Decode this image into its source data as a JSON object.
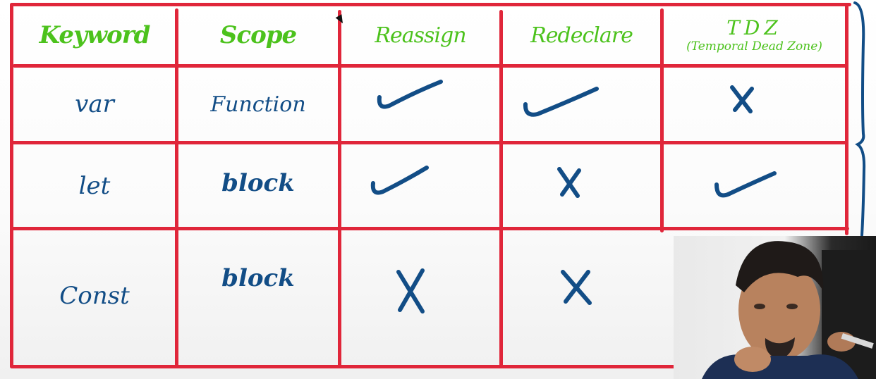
{
  "table": {
    "headers": {
      "keyword": "Keyword",
      "scope": "Scope",
      "reassign": "Reassign",
      "redeclare": "Redeclare",
      "tdz": "TDZ",
      "tdz_sub": "(Temporal Dead Zone)"
    },
    "rows": [
      {
        "keyword": "var",
        "scope": "Function",
        "reassign": "check",
        "redeclare": "check",
        "tdz": "cross"
      },
      {
        "keyword": "let",
        "scope": "block",
        "reassign": "check",
        "redeclare": "cross",
        "tdz": "check"
      },
      {
        "keyword": "Const",
        "scope": "block",
        "reassign": "cross",
        "redeclare": "cross",
        "tdz": ""
      }
    ]
  },
  "colors": {
    "grid": "#e0263a",
    "header_ink": "#4cc21c",
    "body_ink": "#124d86"
  },
  "icons": {
    "check": "check-mark-icon",
    "cross": "cross-mark-icon"
  }
}
